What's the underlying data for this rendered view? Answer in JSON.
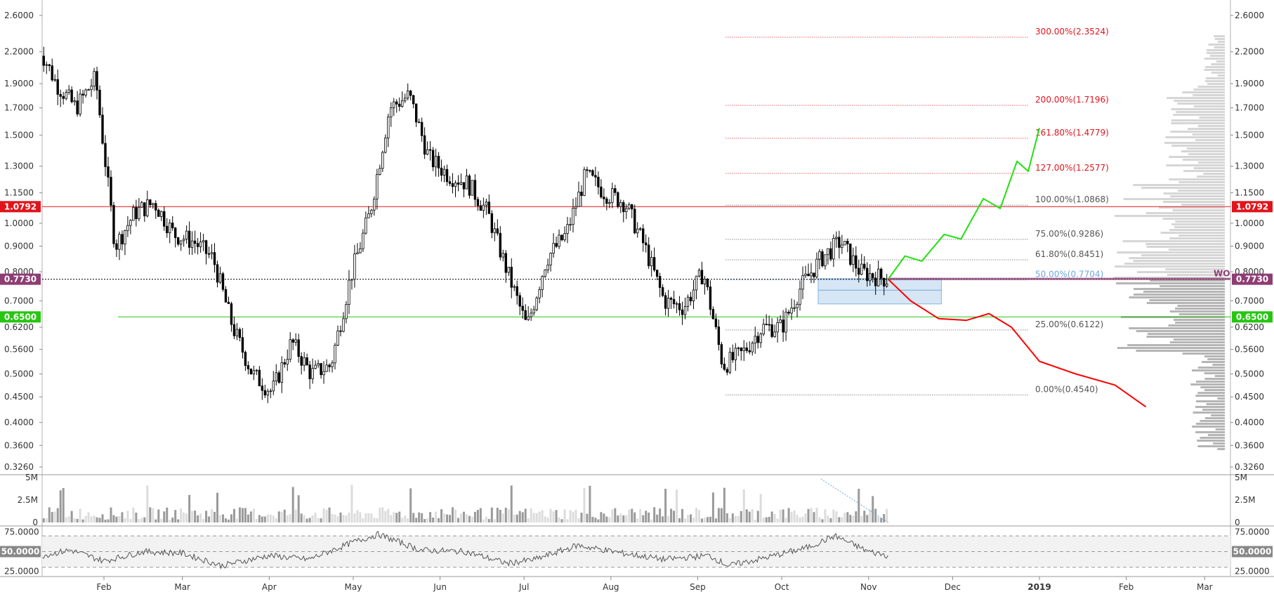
{
  "chart_data": {
    "type": "candlestick",
    "title": "",
    "xlabel": "",
    "ylabel": "",
    "ylim": [
      0.32,
      2.65
    ],
    "y_scale": "log",
    "grid": false,
    "price_axis_ticks": [
      "2.6000",
      "2.2000",
      "1.9000",
      "1.7000",
      "1.5000",
      "1.3000",
      "1.1500",
      "1.0000",
      "0.9000",
      "0.8000",
      "0.7000",
      "0.6200",
      "0.5600",
      "0.5000",
      "0.4500",
      "0.4000",
      "0.3600",
      "0.3260"
    ],
    "time_axis_ticks": [
      "Feb",
      "Mar",
      "Apr",
      "May",
      "Jun",
      "Jul",
      "Aug",
      "Sep",
      "Oct",
      "Nov",
      "Dec",
      "2019",
      "Feb",
      "Mar"
    ],
    "price_series": {
      "name": "",
      "x_start": "2018-01-08",
      "x_end": "2018-11-08",
      "points": [
        [
          "2018-01-08",
          2.3
        ],
        [
          "2018-01-15",
          1.9
        ],
        [
          "2018-01-22",
          1.7
        ],
        [
          "2018-01-29",
          1.95
        ],
        [
          "2018-02-05",
          0.9
        ],
        [
          "2018-02-12",
          1.05
        ],
        [
          "2018-02-19",
          1.1
        ],
        [
          "2018-02-26",
          0.95
        ],
        [
          "2018-03-05",
          0.92
        ],
        [
          "2018-03-12",
          0.85
        ],
        [
          "2018-03-19",
          0.62
        ],
        [
          "2018-03-26",
          0.5
        ],
        [
          "2018-04-02",
          0.46
        ],
        [
          "2018-04-09",
          0.58
        ],
        [
          "2018-04-16",
          0.5
        ],
        [
          "2018-04-23",
          0.52
        ],
        [
          "2018-04-30",
          0.78
        ],
        [
          "2018-05-07",
          1.05
        ],
        [
          "2018-05-14",
          1.7
        ],
        [
          "2018-05-21",
          1.8
        ],
        [
          "2018-05-28",
          1.35
        ],
        [
          "2018-06-04",
          1.25
        ],
        [
          "2018-06-11",
          1.2
        ],
        [
          "2018-06-18",
          1.05
        ],
        [
          "2018-06-25",
          0.8
        ],
        [
          "2018-07-02",
          0.62
        ],
        [
          "2018-07-09",
          0.85
        ],
        [
          "2018-07-16",
          0.95
        ],
        [
          "2018-07-23",
          1.25
        ],
        [
          "2018-07-30",
          1.15
        ],
        [
          "2018-08-06",
          1.1
        ],
        [
          "2018-08-13",
          0.9
        ],
        [
          "2018-08-20",
          0.7
        ],
        [
          "2018-08-27",
          0.68
        ],
        [
          "2018-09-03",
          0.8
        ],
        [
          "2018-09-10",
          0.52
        ],
        [
          "2018-09-17",
          0.55
        ],
        [
          "2018-09-24",
          0.62
        ],
        [
          "2018-10-01",
          0.62
        ],
        [
          "2018-10-08",
          0.75
        ],
        [
          "2018-10-15",
          0.85
        ],
        [
          "2018-10-22",
          0.92
        ],
        [
          "2018-10-29",
          0.8
        ],
        [
          "2018-11-05",
          0.78
        ],
        [
          "2018-11-08",
          0.773
        ]
      ]
    },
    "horizontal_levels": [
      {
        "label": "1.0792",
        "value": 1.0792,
        "color": "#e0151c"
      },
      {
        "label": "0.7730",
        "value": 0.773,
        "color": "#000000"
      },
      {
        "label": "0.6500",
        "value": 0.65,
        "color": "#26c611"
      }
    ],
    "fibonacci_levels": [
      {
        "label": "300.00%(2.3524)",
        "value": 2.3524,
        "color": "#e0151c"
      },
      {
        "label": "200.00%(1.7196)",
        "value": 1.7196,
        "color": "#e0151c"
      },
      {
        "label": "161.80%(1.4779)",
        "value": 1.4779,
        "color": "#e0151c"
      },
      {
        "label": "127.00%(1.2577)",
        "value": 1.2577,
        "color": "#e0151c"
      },
      {
        "label": "100.00%(1.0868)",
        "value": 1.0868,
        "color": "#555555"
      },
      {
        "label": "75.00%(0.9286)",
        "value": 0.9286,
        "color": "#555555"
      },
      {
        "label": "61.80%(0.8451)",
        "value": 0.8451,
        "color": "#555555"
      },
      {
        "label": "50.00%(0.7704)",
        "value": 0.7704,
        "color": "#6fa8dc"
      },
      {
        "label": "25.00%(0.6122)",
        "value": 0.6122,
        "color": "#555555"
      },
      {
        "label": "0.00%(0.4540)",
        "value": 0.454,
        "color": "#555555"
      }
    ],
    "bullish_projection": {
      "color": "#22e011",
      "points": [
        [
          "2018-11-08",
          0.773
        ],
        [
          "2018-11-14",
          0.86
        ],
        [
          "2018-11-20",
          0.84
        ],
        [
          "2018-11-28",
          0.95
        ],
        [
          "2018-12-04",
          0.93
        ],
        [
          "2018-12-12",
          1.12
        ],
        [
          "2018-12-18",
          1.07
        ],
        [
          "2018-12-24",
          1.33
        ],
        [
          "2018-12-28",
          1.27
        ],
        [
          "2019-01-01",
          1.55
        ]
      ]
    },
    "bearish_projection": {
      "color": "#ff0000",
      "points": [
        [
          "2018-11-08",
          0.773
        ],
        [
          "2018-11-16",
          0.7
        ],
        [
          "2018-11-26",
          0.645
        ],
        [
          "2018-12-06",
          0.64
        ],
        [
          "2018-12-14",
          0.66
        ],
        [
          "2018-12-22",
          0.62
        ],
        [
          "2019-01-01",
          0.53
        ],
        [
          "2019-01-14",
          0.5
        ],
        [
          "2019-01-28",
          0.475
        ],
        [
          "2019-02-08",
          0.43
        ]
      ]
    },
    "zone_label": "WO",
    "volume_axis_ticks": [
      "5M",
      "2.5M",
      "0"
    ],
    "rsi_axis_ticks": [
      "75.0000",
      "50.0000",
      "25.0000"
    ],
    "rsi_series_approx": [
      [
        "2018-01-10",
        45
      ],
      [
        "2018-01-20",
        52
      ],
      [
        "2018-02-01",
        38
      ],
      [
        "2018-02-15",
        50
      ],
      [
        "2018-03-01",
        48
      ],
      [
        "2018-03-15",
        32
      ],
      [
        "2018-04-01",
        45
      ],
      [
        "2018-04-15",
        40
      ],
      [
        "2018-05-01",
        62
      ],
      [
        "2018-05-10",
        72
      ],
      [
        "2018-05-25",
        52
      ],
      [
        "2018-06-10",
        50
      ],
      [
        "2018-06-25",
        35
      ],
      [
        "2018-07-05",
        40
      ],
      [
        "2018-07-20",
        58
      ],
      [
        "2018-08-05",
        48
      ],
      [
        "2018-08-20",
        40
      ],
      [
        "2018-09-05",
        45
      ],
      [
        "2018-09-12",
        32
      ],
      [
        "2018-09-25",
        42
      ],
      [
        "2018-10-10",
        55
      ],
      [
        "2018-10-20",
        70
      ],
      [
        "2018-11-01",
        50
      ],
      [
        "2018-11-08",
        45
      ]
    ]
  },
  "colors": {
    "bull_candle": "#ffffff",
    "bear_candle": "#000000",
    "fib_zone_fill": "#cfe2f3",
    "volume_bar": "#9a9a9a",
    "volume_bar_light": "#dcdcdc",
    "rsi_line": "#555555",
    "volume_trend_line": "#6fa8dc"
  }
}
